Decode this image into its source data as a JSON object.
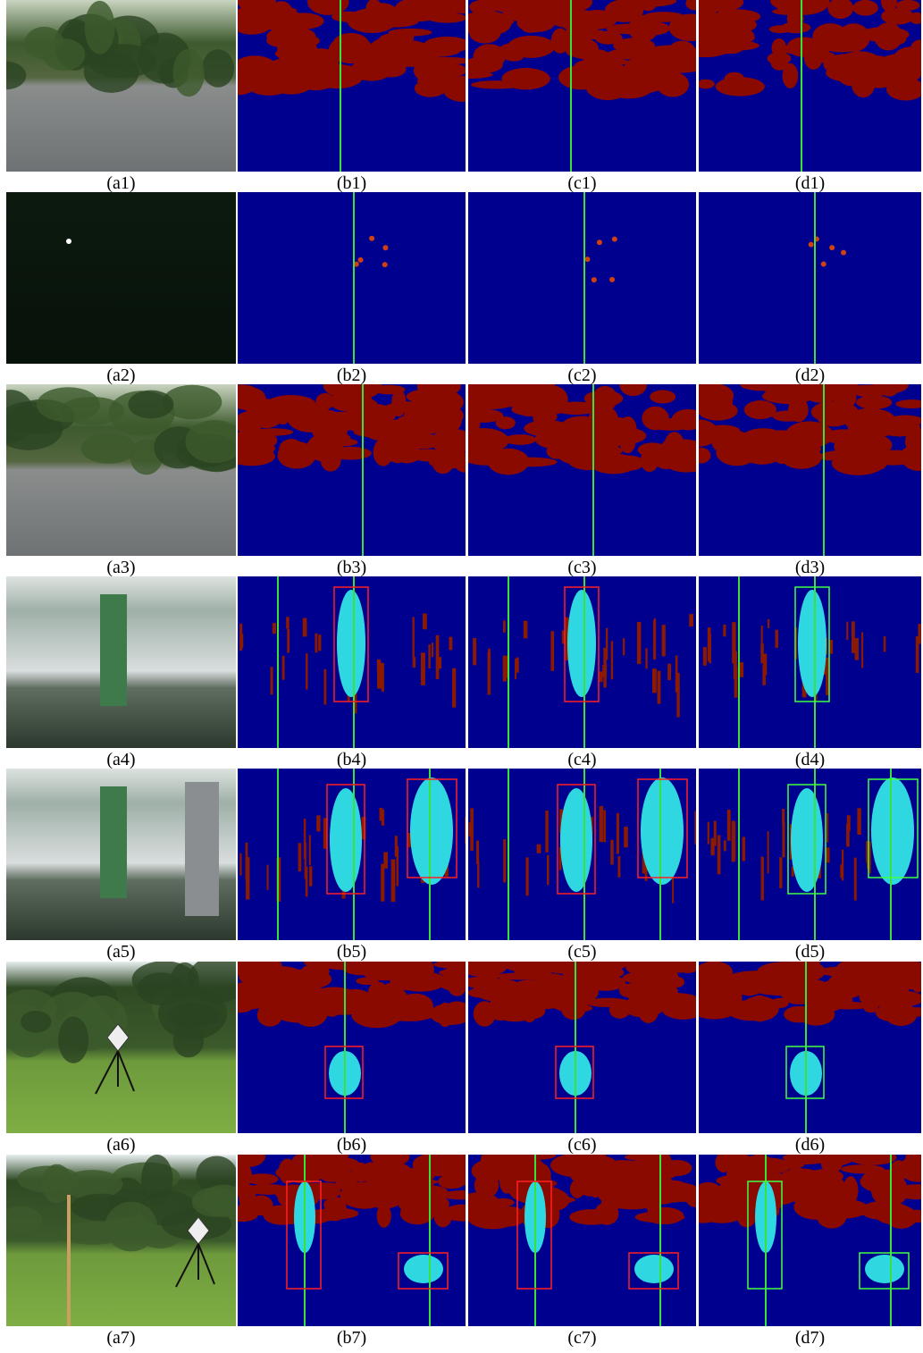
{
  "rows": [
    [
      "(a1)",
      "(b1)",
      "(c1)",
      "(d1)"
    ],
    [
      "(a2)",
      "(b2)",
      "(c2)",
      "(d2)"
    ],
    [
      "(a3)",
      "(b3)",
      "(c3)",
      "(d3)"
    ],
    [
      "(a4)",
      "(b4)",
      "(c4)",
      "(d4)"
    ],
    [
      "(a5)",
      "(b5)",
      "(c5)",
      "(d5)"
    ],
    [
      "(a6)",
      "(b6)",
      "(c6)",
      "(d6)"
    ],
    [
      "(a7)",
      "(b7)",
      "(c7)",
      "(d7)"
    ]
  ]
}
